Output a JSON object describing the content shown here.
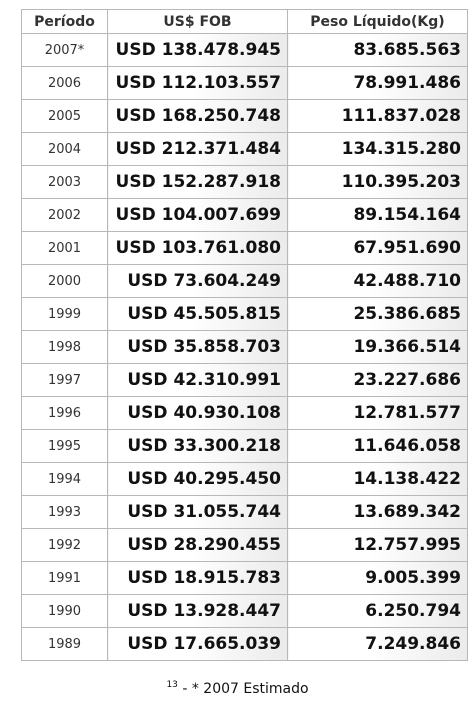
{
  "table": {
    "headers": [
      "Período",
      "US$ FOB",
      "Peso Líquido(Kg)"
    ],
    "rows": [
      {
        "period": "2007*",
        "fob": "USD 138.478.945",
        "weight": "83.685.563"
      },
      {
        "period": "2006",
        "fob": "USD 112.103.557",
        "weight": "78.991.486"
      },
      {
        "period": "2005",
        "fob": "USD 168.250.748",
        "weight": "111.837.028"
      },
      {
        "period": "2004",
        "fob": "USD 212.371.484",
        "weight": "134.315.280"
      },
      {
        "period": "2003",
        "fob": "USD 152.287.918",
        "weight": "110.395.203"
      },
      {
        "period": "2002",
        "fob": "USD 104.007.699",
        "weight": "89.154.164"
      },
      {
        "period": "2001",
        "fob": "USD 103.761.080",
        "weight": "67.951.690"
      },
      {
        "period": "2000",
        "fob": "USD 73.604.249",
        "weight": "42.488.710"
      },
      {
        "period": "1999",
        "fob": "USD 45.505.815",
        "weight": "25.386.685"
      },
      {
        "period": "1998",
        "fob": "USD 35.858.703",
        "weight": "19.366.514"
      },
      {
        "period": "1997",
        "fob": "USD 42.310.991",
        "weight": "23.227.686"
      },
      {
        "period": "1996",
        "fob": "USD 40.930.108",
        "weight": "12.781.577"
      },
      {
        "period": "1995",
        "fob": "USD 33.300.218",
        "weight": "11.646.058"
      },
      {
        "period": "1994",
        "fob": "USD 40.295.450",
        "weight": "14.138.422"
      },
      {
        "period": "1993",
        "fob": "USD 31.055.744",
        "weight": "13.689.342"
      },
      {
        "period": "1992",
        "fob": "USD 28.290.455",
        "weight": "12.757.995"
      },
      {
        "period": "1991",
        "fob": "USD 18.915.783",
        "weight": "9.005.399"
      },
      {
        "period": "1990",
        "fob": "USD 13.928.447",
        "weight": "6.250.794"
      },
      {
        "period": "1989",
        "fob": "USD 17.665.039",
        "weight": "7.249.846"
      }
    ]
  },
  "footnote": {
    "ref": "13",
    "text": " - * 2007 Estimado"
  }
}
